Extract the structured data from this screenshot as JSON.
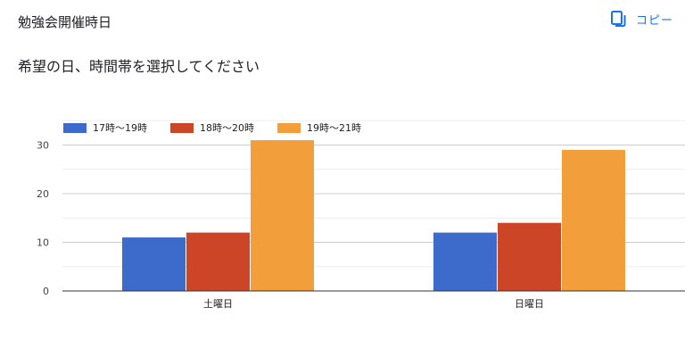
{
  "header": {
    "title": "勉強会開催時日",
    "copy_label": "コピー",
    "copy_icon": "copy-icon",
    "accent_color": "#1a73e8"
  },
  "question": {
    "text": "希望の日、時間帯を選択してください"
  },
  "chart_data": {
    "type": "bar",
    "categories": [
      "土曜日",
      "日曜日"
    ],
    "series": [
      {
        "name": "17時〜19時",
        "values": [
          11,
          12
        ],
        "color": "#3c6bcb"
      },
      {
        "name": "18時〜20時",
        "values": [
          12,
          14
        ],
        "color": "#cc4527"
      },
      {
        "name": "19時〜21時",
        "values": [
          31,
          29
        ],
        "color": "#f29f3b"
      }
    ],
    "yticks": [
      0,
      10,
      20,
      30
    ],
    "ylim": [
      0,
      35
    ],
    "grid": true,
    "legend_position": "top-left"
  }
}
